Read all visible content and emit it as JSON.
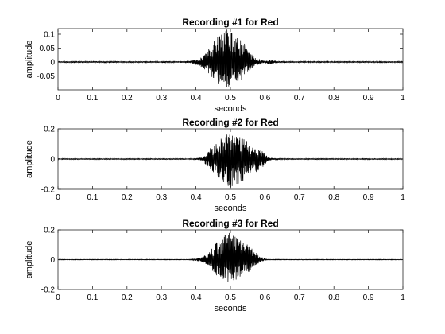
{
  "chart_data": [
    {
      "type": "line",
      "title": "Recording #1 for Red",
      "xlabel": "seconds",
      "ylabel": "amplitude",
      "xlim": [
        0,
        1
      ],
      "ylim": [
        -0.1,
        0.12
      ],
      "xticks": [
        0,
        0.1,
        0.2,
        0.3,
        0.4,
        0.5,
        0.6,
        0.7,
        0.8,
        0.9,
        1
      ],
      "xtick_labels": [
        "0",
        "0.1",
        "0.2",
        "0.3",
        "0.4",
        "0.5",
        "0.6",
        "0.7",
        "0.8",
        "0.9",
        "1"
      ],
      "yticks": [
        -0.05,
        0,
        0.05,
        0.1
      ],
      "ytick_labels": [
        "-0.05",
        "0",
        "0.05",
        "0.1"
      ],
      "grid": false,
      "series_color": "#000000",
      "envelope": {
        "x": [
          0,
          0.3,
          0.31,
          0.32,
          0.34,
          0.38,
          0.41,
          0.43,
          0.45,
          0.47,
          0.49,
          0.51,
          0.53,
          0.55,
          0.57,
          0.6,
          0.61,
          0.62,
          0.63,
          0.64,
          0.66,
          1
        ],
        "upper": [
          0.002,
          0.002,
          0.004,
          0.002,
          0.002,
          0.003,
          0.012,
          0.035,
          0.07,
          0.11,
          0.12,
          0.11,
          0.085,
          0.05,
          0.015,
          0.003,
          0.006,
          0.008,
          0.004,
          0.002,
          0.002,
          0.002
        ],
        "lower": [
          -0.002,
          -0.002,
          -0.004,
          -0.002,
          -0.002,
          -0.003,
          -0.012,
          -0.035,
          -0.06,
          -0.085,
          -0.095,
          -0.09,
          -0.07,
          -0.04,
          -0.015,
          -0.003,
          -0.006,
          -0.008,
          -0.004,
          -0.002,
          -0.002,
          -0.002
        ]
      }
    },
    {
      "type": "line",
      "title": "Recording #2 for Red",
      "xlabel": "seconds",
      "ylabel": "amplitude",
      "xlim": [
        0,
        1
      ],
      "ylim": [
        -0.2,
        0.2
      ],
      "xticks": [
        0,
        0.1,
        0.2,
        0.3,
        0.4,
        0.5,
        0.6,
        0.7,
        0.8,
        0.9,
        1
      ],
      "xtick_labels": [
        "0",
        "0.1",
        "0.2",
        "0.3",
        "0.4",
        "0.5",
        "0.6",
        "0.7",
        "0.8",
        "0.9",
        "1"
      ],
      "yticks": [
        -0.2,
        0,
        0.2
      ],
      "ytick_labels": [
        "-0.2",
        "0",
        "0.2"
      ],
      "grid": false,
      "series_color": "#000000",
      "envelope": {
        "x": [
          0,
          0.39,
          0.4,
          0.41,
          0.42,
          0.43,
          0.44,
          0.46,
          0.48,
          0.5,
          0.52,
          0.54,
          0.56,
          0.58,
          0.6,
          0.61,
          0.63,
          0.64,
          0.65,
          0.66,
          1
        ],
        "upper": [
          0.003,
          0.003,
          0.006,
          0.008,
          0.012,
          0.03,
          0.07,
          0.11,
          0.15,
          0.18,
          0.16,
          0.13,
          0.11,
          0.08,
          0.04,
          0.01,
          0.004,
          0.006,
          0.004,
          0.003,
          0.003
        ],
        "lower": [
          -0.003,
          -0.003,
          -0.006,
          -0.008,
          -0.012,
          -0.04,
          -0.08,
          -0.12,
          -0.16,
          -0.19,
          -0.17,
          -0.14,
          -0.11,
          -0.08,
          -0.04,
          -0.01,
          -0.004,
          -0.006,
          -0.004,
          -0.003,
          -0.003
        ]
      }
    },
    {
      "type": "line",
      "title": "Recording #3 for Red",
      "xlabel": "seconds",
      "ylabel": "amplitude",
      "xlim": [
        0,
        1
      ],
      "ylim": [
        -0.2,
        0.2
      ],
      "xticks": [
        0,
        0.1,
        0.2,
        0.3,
        0.4,
        0.5,
        0.6,
        0.7,
        0.8,
        0.9,
        1
      ],
      "xtick_labels": [
        "0",
        "0.1",
        "0.2",
        "0.3",
        "0.4",
        "0.5",
        "0.6",
        "0.7",
        "0.8",
        "0.9",
        "1"
      ],
      "yticks": [
        -0.2,
        0,
        0.2
      ],
      "ytick_labels": [
        "-0.2",
        "0",
        "0.2"
      ],
      "grid": false,
      "series_color": "#000000",
      "envelope": {
        "x": [
          0,
          0.38,
          0.4,
          0.42,
          0.44,
          0.46,
          0.48,
          0.5,
          0.52,
          0.54,
          0.56,
          0.58,
          0.59,
          0.6,
          0.61,
          1
        ],
        "upper": [
          0.002,
          0.002,
          0.006,
          0.02,
          0.06,
          0.12,
          0.17,
          0.19,
          0.16,
          0.12,
          0.08,
          0.04,
          0.02,
          0.006,
          0.002,
          0.002
        ],
        "lower": [
          -0.002,
          -0.002,
          -0.006,
          -0.02,
          -0.06,
          -0.11,
          -0.15,
          -0.18,
          -0.15,
          -0.12,
          -0.07,
          -0.03,
          -0.015,
          -0.006,
          -0.002,
          -0.002
        ]
      }
    }
  ]
}
